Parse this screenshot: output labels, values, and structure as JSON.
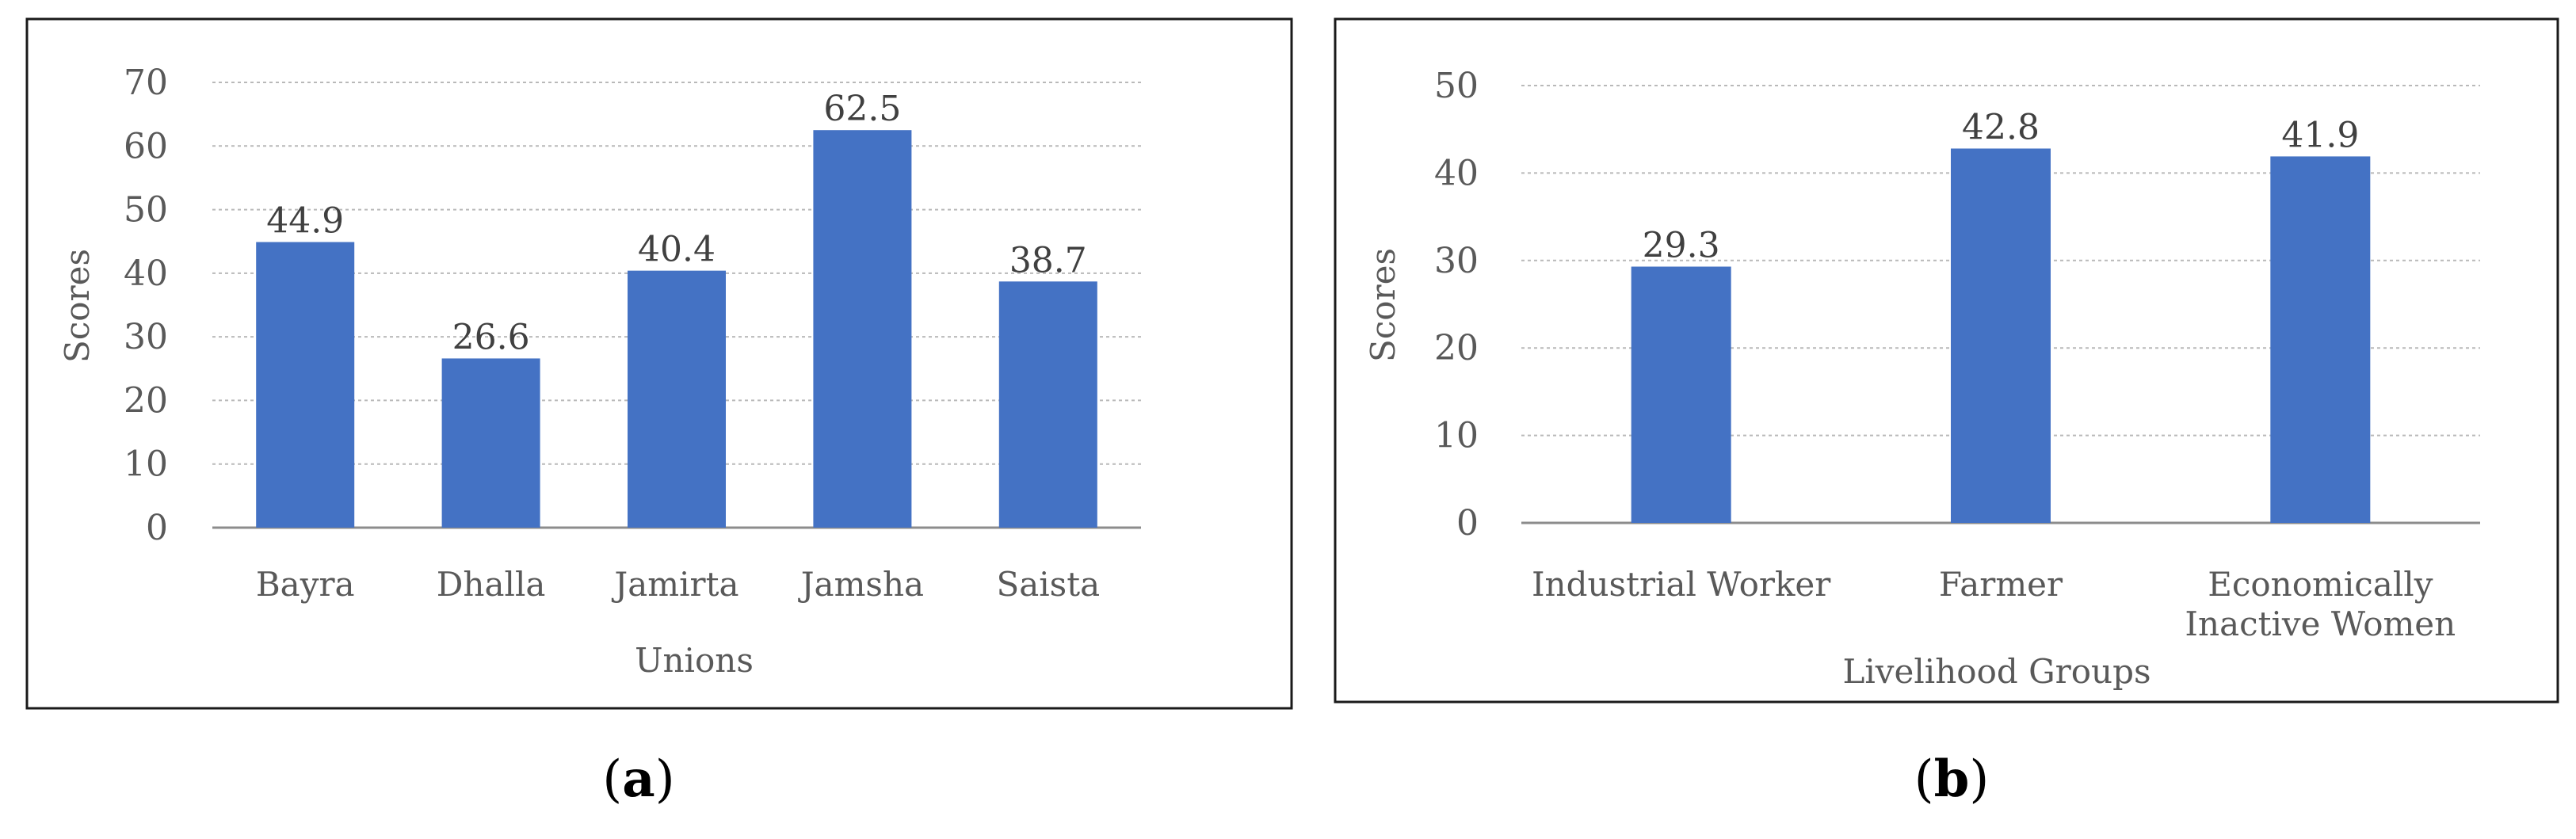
{
  "chart_data": [
    {
      "type": "bar",
      "categories": [
        "Bayra",
        "Dhalla",
        "Jamirta",
        "Jamsha",
        "Saista"
      ],
      "values": [
        44.9,
        26.6,
        40.4,
        62.5,
        38.7
      ],
      "data_labels": [
        "44.9",
        "26.6",
        "40.4",
        "62.5",
        "38.7"
      ],
      "xlabel": "Unions",
      "ylabel": "Scores",
      "ylim": [
        0,
        70
      ],
      "yticks": [
        0,
        10,
        20,
        30,
        40,
        50,
        60,
        70
      ],
      "grid": true,
      "bar_color": "#4472c4",
      "caption": {
        "open": "(",
        "letter": "a",
        "close": ")"
      }
    },
    {
      "type": "bar",
      "categories": [
        "Industrial Worker",
        "Farmer",
        "Economically Inactive Women"
      ],
      "category_lines": [
        [
          "Industrial Worker"
        ],
        [
          "Farmer"
        ],
        [
          "Economically",
          "Inactive Women"
        ]
      ],
      "values": [
        29.3,
        42.8,
        41.9
      ],
      "data_labels": [
        "29.3",
        "42.8",
        "41.9"
      ],
      "xlabel": "Livelihood Groups",
      "ylabel": "Scores",
      "ylim": [
        0,
        50
      ],
      "yticks": [
        0,
        10,
        20,
        30,
        40,
        50
      ],
      "grid": true,
      "bar_color": "#4472c4",
      "caption": {
        "open": "(",
        "letter": "b",
        "close": ")"
      }
    }
  ]
}
